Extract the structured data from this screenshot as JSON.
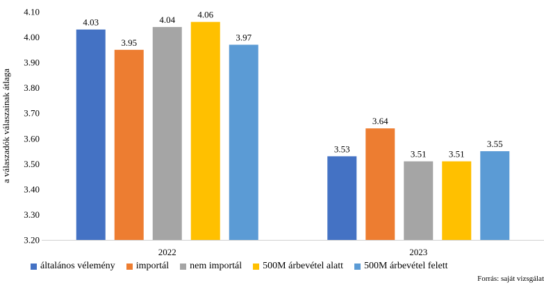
{
  "chart_data": {
    "type": "bar",
    "title": "",
    "xlabel": "",
    "ylabel": "a válaszadók válaszainak átlaga",
    "ylim": [
      3.2,
      4.1
    ],
    "yticks": [
      "3.20",
      "3.30",
      "3.40",
      "3.50",
      "3.60",
      "3.70",
      "3.80",
      "3.90",
      "4.00",
      "4.10"
    ],
    "categories": [
      "2022",
      "2023"
    ],
    "grid": false,
    "legend_position": "bottom",
    "series": [
      {
        "name": "általános vélemény",
        "color": "#4472c4",
        "values": [
          4.03,
          3.53
        ]
      },
      {
        "name": "importál",
        "color": "#ed7d31",
        "values": [
          3.95,
          3.64
        ]
      },
      {
        "name": "nem importál",
        "color": "#a5a5a5",
        "values": [
          4.04,
          3.51
        ]
      },
      {
        "name": "500M árbevétel alatt",
        "color": "#ffc000",
        "values": [
          4.06,
          3.51
        ]
      },
      {
        "name": "500M árbevétel felett",
        "color": "#5b9bd5",
        "values": [
          3.97,
          3.55
        ]
      }
    ]
  },
  "source": "Forrás: saját vizsgálat"
}
